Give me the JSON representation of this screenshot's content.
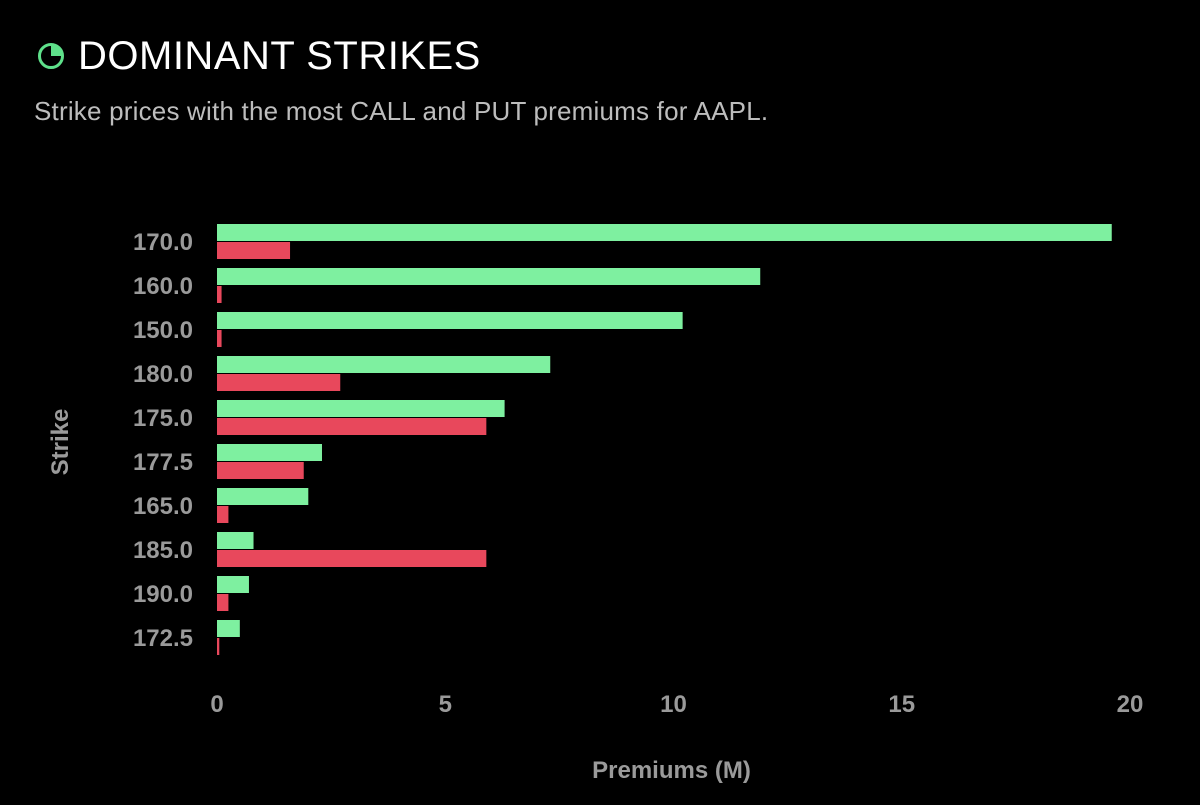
{
  "header": {
    "icon": "pie-chart-icon",
    "title": "DOMINANT STRIKES",
    "subtitle": "Strike prices with the most CALL and PUT premiums for AAPL."
  },
  "colors": {
    "background": "#000000",
    "call": "#7ef0a0",
    "put": "#e8485c",
    "accent": "#5ee08a",
    "axis_text": "#9a9a9a"
  },
  "chart_data": {
    "type": "bar",
    "orientation": "horizontal",
    "categories": [
      "170.0",
      "160.0",
      "150.0",
      "180.0",
      "175.0",
      "177.5",
      "165.0",
      "185.0",
      "190.0",
      "172.5"
    ],
    "series": [
      {
        "values": [
          19.6,
          11.9,
          10.2,
          7.3,
          6.3,
          2.3,
          2.0,
          0.8,
          0.7,
          0.5
        ]
      },
      {
        "values": [
          1.6,
          0.1,
          0.1,
          2.7,
          5.9,
          1.9,
          0.25,
          5.9,
          0.25,
          0.05
        ]
      }
    ],
    "xlabel": "Premiums (M)",
    "ylabel": "Strike",
    "xlim": [
      0,
      20
    ],
    "xticks": [
      "0",
      "5",
      "10",
      "15",
      "20"
    ],
    "grid": false
  }
}
